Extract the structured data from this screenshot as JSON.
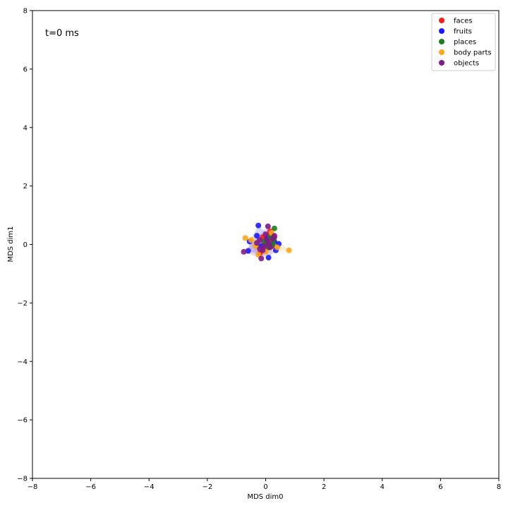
{
  "chart_data": {
    "type": "scatter",
    "title": "",
    "xlabel": "MDS dim0",
    "ylabel": "MDS dim1",
    "xlim": [
      -8,
      8
    ],
    "ylim": [
      -8,
      8
    ],
    "xticks": [
      -8,
      -6,
      -4,
      -2,
      0,
      2,
      4,
      6,
      8
    ],
    "yticks": [
      -8,
      -6,
      -4,
      -2,
      0,
      2,
      4,
      6,
      8
    ],
    "grid": false,
    "legend_position": "top-right",
    "annotation": "t=0 ms",
    "series": [
      {
        "name": "faces",
        "color": "#ff1a1a",
        "points": [
          [
            0.15,
            0.45
          ],
          [
            0.3,
            0.25
          ],
          [
            -0.2,
            -0.3
          ],
          [
            0.05,
            0.05
          ],
          [
            0.25,
            -0.05
          ],
          [
            -0.1,
            0.25
          ],
          [
            0.1,
            0.3
          ],
          [
            0.2,
            0.1
          ],
          [
            -0.05,
            -0.15
          ],
          [
            0.0,
            0.15
          ]
        ]
      },
      {
        "name": "fruits",
        "color": "#1a1aff",
        "points": [
          [
            -0.25,
            0.65
          ],
          [
            -0.55,
            0.1
          ],
          [
            -0.6,
            -0.22
          ],
          [
            0.1,
            -0.45
          ],
          [
            0.45,
            0.02
          ],
          [
            0.35,
            -0.2
          ],
          [
            -0.15,
            -0.05
          ],
          [
            0.05,
            0.2
          ],
          [
            0.3,
            0.1
          ],
          [
            -0.3,
            0.3
          ]
        ]
      },
      {
        "name": "places",
        "color": "#1a801a",
        "points": [
          [
            0.3,
            0.55
          ],
          [
            0.25,
            0.05
          ],
          [
            0.15,
            0.25
          ],
          [
            -0.05,
            0.1
          ],
          [
            0.1,
            -0.1
          ],
          [
            0.28,
            0.2
          ],
          [
            0.2,
            -0.05
          ],
          [
            0.0,
            0.0
          ]
        ]
      },
      {
        "name": "body parts",
        "color": "#ffa51a",
        "points": [
          [
            -0.7,
            0.22
          ],
          [
            0.8,
            -0.2
          ],
          [
            -0.5,
            0.15
          ],
          [
            -0.25,
            -0.35
          ],
          [
            0.2,
            0.4
          ],
          [
            0.0,
            -0.25
          ],
          [
            -0.35,
            -0.05
          ],
          [
            0.4,
            -0.1
          ]
        ]
      },
      {
        "name": "objects",
        "color": "#80198b",
        "points": [
          [
            -0.75,
            -0.25
          ],
          [
            0.08,
            0.62
          ],
          [
            -0.15,
            -0.48
          ],
          [
            -0.2,
            0.15
          ],
          [
            -0.05,
            -0.05
          ],
          [
            0.05,
            0.15
          ],
          [
            0.15,
            -0.1
          ],
          [
            0.25,
            0.2
          ],
          [
            -0.3,
            0.05
          ],
          [
            0.0,
            0.35
          ],
          [
            -0.1,
            -0.2
          ],
          [
            0.12,
            0.02
          ],
          [
            -0.2,
            -0.15
          ],
          [
            0.3,
            0.3
          ]
        ]
      }
    ]
  }
}
